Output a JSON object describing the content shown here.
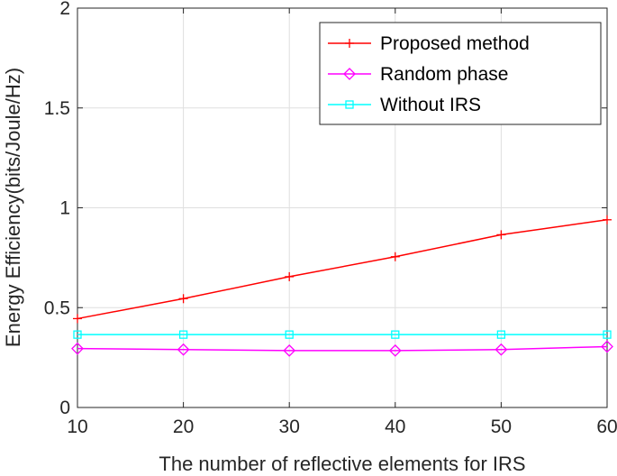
{
  "chart_data": {
    "type": "line",
    "xlabel": "The number of reflective elements for IRS",
    "ylabel": "Energy Efficiency(bits/Joule/Hz)",
    "xlim": [
      10,
      60
    ],
    "ylim": [
      0,
      2
    ],
    "xticks": [
      10,
      20,
      30,
      40,
      50,
      60
    ],
    "yticks": [
      0,
      0.5,
      1,
      1.5,
      2
    ],
    "xtick_labels": [
      "10",
      "20",
      "30",
      "40",
      "50",
      "60"
    ],
    "ytick_labels": [
      "0",
      "0.5",
      "1",
      "1.5",
      "2"
    ],
    "grid": true,
    "legend_position": "top-right",
    "x": [
      10,
      20,
      30,
      40,
      50,
      60
    ],
    "series": [
      {
        "name": "Proposed method",
        "color": "#ff0000",
        "marker": "plus",
        "values": [
          0.445,
          0.545,
          0.655,
          0.755,
          0.865,
          0.94
        ]
      },
      {
        "name": "Random phase",
        "color": "#ff00ff",
        "marker": "diamond",
        "values": [
          0.295,
          0.29,
          0.285,
          0.285,
          0.29,
          0.305
        ]
      },
      {
        "name": "Without IRS",
        "color": "#00ffff",
        "marker": "square",
        "values": [
          0.365,
          0.365,
          0.365,
          0.365,
          0.365,
          0.365
        ]
      }
    ]
  }
}
